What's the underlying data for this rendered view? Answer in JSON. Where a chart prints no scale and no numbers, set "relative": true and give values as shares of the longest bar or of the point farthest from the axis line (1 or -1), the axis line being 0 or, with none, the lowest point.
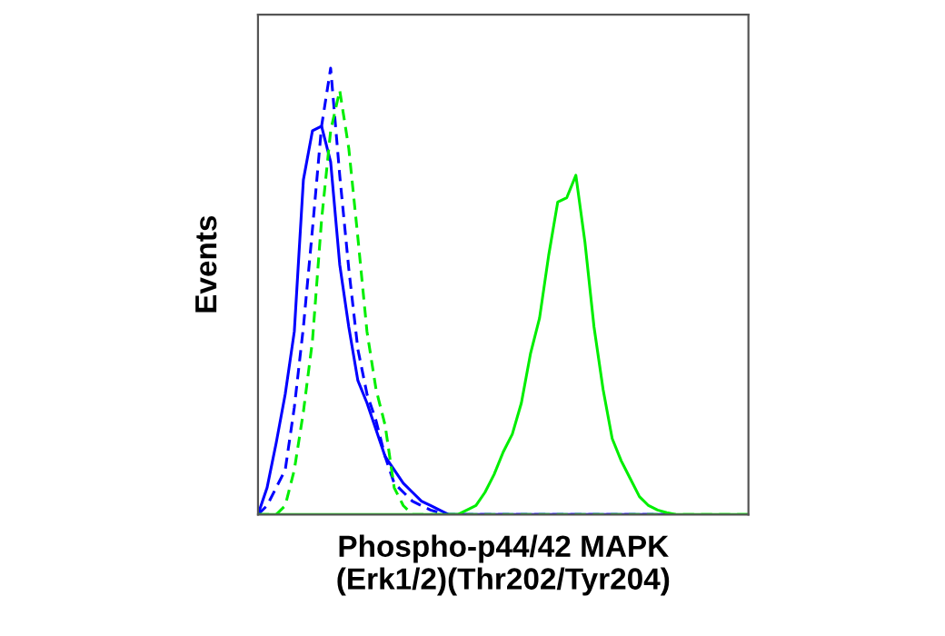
{
  "chart_data": {
    "type": "line",
    "relative": true,
    "xlabel": "Phospho-p44/42 MAPK\n(Erk1/2)(Thr202/Tyr204)",
    "ylabel": "Events",
    "marker": "none",
    "categories": [
      null,
      null,
      null,
      null,
      null,
      null,
      null,
      null,
      null,
      null,
      null,
      null,
      null,
      null,
      null,
      null,
      null,
      null,
      null,
      null,
      null,
      null,
      null,
      null,
      null,
      null,
      null,
      null,
      null,
      null,
      null,
      null,
      null,
      null,
      null,
      null,
      null,
      null,
      null,
      null,
      null,
      null,
      null,
      null,
      null,
      null,
      null,
      null,
      null,
      null,
      null,
      null,
      null,
      null,
      null
    ],
    "series": [
      {
        "color": "#0000ff",
        "line_style": "solid",
        "values": [
          0,
          0.06,
          0.16,
          0.27,
          0.41,
          0.75,
          0.86,
          0.87,
          0.79,
          0.56,
          0.42,
          0.3,
          0.25,
          0.19,
          0.13,
          0.1,
          0.07,
          0.05,
          0.03,
          0.02,
          0.01,
          0,
          0,
          0,
          0,
          0,
          0,
          0,
          0,
          0,
          0,
          0,
          0,
          0,
          0,
          0,
          0,
          0,
          0,
          0,
          0,
          0,
          0,
          0,
          0,
          0,
          null,
          null,
          null,
          null,
          null,
          null,
          null,
          null,
          null
        ]
      },
      {
        "color": "#0000ff",
        "line_style": "dashed",
        "values": [
          0,
          0.02,
          0.06,
          0.1,
          0.24,
          0.42,
          0.64,
          0.87,
          1.0,
          0.76,
          0.55,
          0.37,
          0.27,
          0.21,
          0.13,
          0.07,
          0.05,
          0.03,
          0.02,
          0.01,
          0.004,
          0,
          0,
          0,
          0,
          0,
          0,
          0,
          0,
          0,
          0,
          0,
          0,
          0,
          0,
          0,
          0,
          0,
          0,
          0,
          0,
          0,
          0,
          0,
          0,
          0,
          null,
          null,
          null,
          null,
          null,
          null,
          null,
          null,
          null
        ]
      },
      {
        "color": "#00ee00",
        "line_style": "dashed",
        "values": [
          0,
          0,
          0,
          0.02,
          0.1,
          0.23,
          0.39,
          0.66,
          0.86,
          0.95,
          0.82,
          0.62,
          0.41,
          0.28,
          0.2,
          0.06,
          0.02,
          0,
          0,
          0,
          0,
          0,
          0,
          0,
          0,
          0,
          0,
          0,
          0,
          0,
          0,
          0,
          0,
          0,
          0,
          0,
          0,
          0,
          0,
          0,
          0,
          0,
          0,
          0,
          0,
          0,
          0,
          0,
          0,
          0,
          0,
          0,
          0,
          0,
          0
        ]
      },
      {
        "color": "#00ee00",
        "line_style": "solid",
        "values": [
          0,
          0,
          0,
          0,
          0,
          0,
          0,
          0,
          0,
          0,
          0,
          0,
          0,
          0,
          0,
          0,
          0,
          0,
          0,
          0,
          0,
          0,
          0,
          0.01,
          0.02,
          0.05,
          0.09,
          0.14,
          0.18,
          0.25,
          0.36,
          0.44,
          0.58,
          0.7,
          0.71,
          0.76,
          0.61,
          0.42,
          0.28,
          0.17,
          0.12,
          0.08,
          0.04,
          0.02,
          0.01,
          0.004,
          0,
          0,
          0,
          0,
          0,
          0,
          0,
          0,
          0
        ]
      }
    ]
  }
}
